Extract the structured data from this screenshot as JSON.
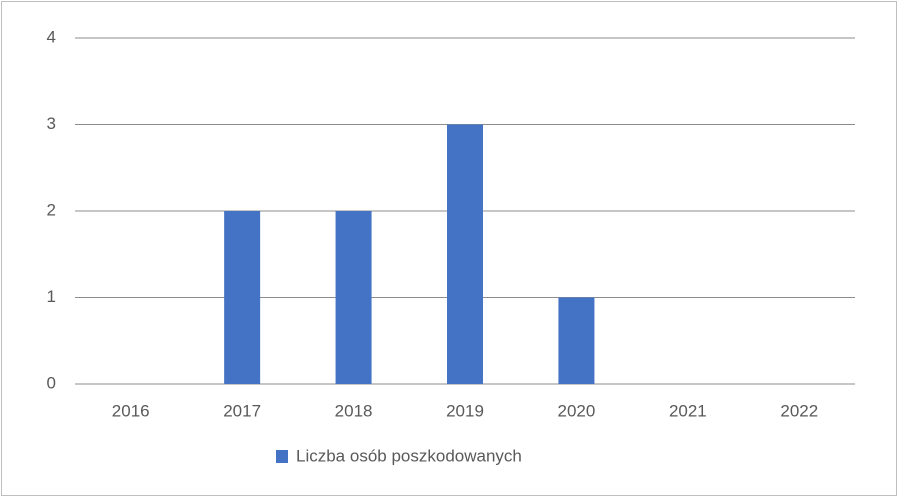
{
  "chart_data": {
    "type": "bar",
    "categories": [
      "2016",
      "2017",
      "2018",
      "2019",
      "2020",
      "2021",
      "2022"
    ],
    "series": [
      {
        "name": "Liczba osób poszkodowanych",
        "color": "#4472c4",
        "values": [
          0,
          2,
          2,
          3,
          1,
          0,
          0
        ]
      }
    ],
    "ylim": [
      0,
      4
    ],
    "yticks": [
      0,
      1,
      2,
      3,
      4
    ],
    "grid": true,
    "legend": "bottom"
  }
}
